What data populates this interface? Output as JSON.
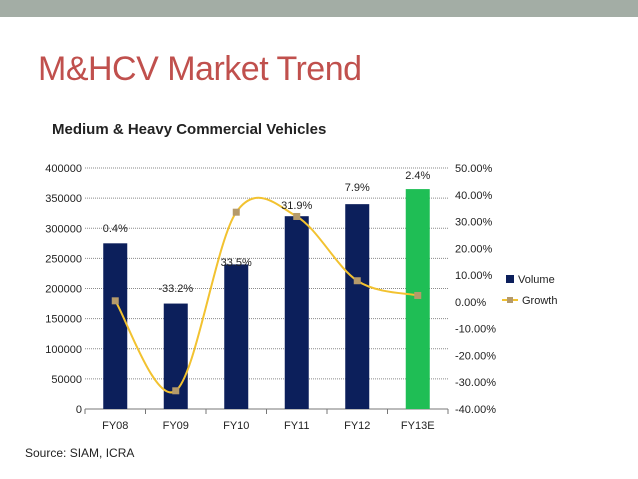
{
  "slide": {
    "title": "M&HCV Market Trend",
    "source": "Source: SIAM, ICRA"
  },
  "chart_data": {
    "type": "bar",
    "title": "Medium & Heavy Commercial Vehicles",
    "categories": [
      "FY08",
      "FY09",
      "FY10",
      "FY11",
      "FY12",
      "FY13E"
    ],
    "series": [
      {
        "name": "Volume",
        "type": "bar",
        "axis": "left",
        "values": [
          275000,
          175000,
          240000,
          320000,
          340000,
          365000
        ],
        "color": "#0c1f5b",
        "highlight_index": 5,
        "highlight_color": "#1fbe55"
      },
      {
        "name": "Growth",
        "type": "line",
        "axis": "right",
        "values": [
          0.4,
          -33.2,
          33.5,
          31.9,
          7.9,
          2.4
        ],
        "labels": [
          "0.4%",
          "-33.2%",
          "33.5%",
          "31.9%",
          "7.9%",
          "2.4%"
        ],
        "color": "#f2c230",
        "marker_color": "#b59a6a"
      }
    ],
    "y_left": {
      "range": [
        0,
        400000
      ],
      "ticks": [
        "0",
        "50000",
        "100000",
        "150000",
        "200000",
        "250000",
        "300000",
        "350000",
        "400000"
      ]
    },
    "y_right": {
      "range": [
        -40,
        50
      ],
      "ticks": [
        "-40.00%",
        "-30.00%",
        "-20.00%",
        "-10.00%",
        "0.00%",
        "10.00%",
        "20.00%",
        "30.00%",
        "40.00%",
        "50.00%"
      ]
    },
    "grid": true,
    "legend": "right"
  }
}
